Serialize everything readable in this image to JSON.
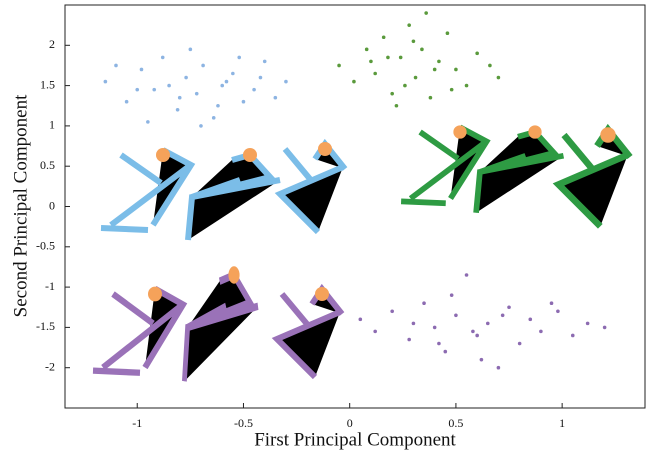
{
  "chart_data": {
    "type": "scatter",
    "x_label": "First Principal Component",
    "y_label": "Second Principal Component",
    "xlim": [
      -1.34,
      1.39
    ],
    "ylim": [
      -2.5,
      2.5
    ],
    "xticks": [
      -1,
      -0.5,
      0,
      0.5,
      1
    ],
    "yticks": [
      -2,
      -1.5,
      -1,
      -0.5,
      0,
      0.5,
      1,
      1.5,
      2
    ],
    "series": [
      {
        "color": "#8db4e2",
        "x": [
          -1.15,
          -1.05,
          -0.98,
          -0.92,
          -0.88,
          -0.81,
          -0.77,
          -0.72,
          -0.69,
          -0.64,
          -0.6,
          -0.55,
          -0.5,
          -0.45,
          -0.4,
          -0.35,
          -0.3,
          -1.1,
          -0.95,
          -0.85,
          -0.75,
          -0.62,
          -0.52,
          -0.42,
          -0.7,
          -0.8,
          -1.0,
          -0.58
        ],
        "values": [
          1.55,
          1.3,
          1.7,
          1.45,
          1.85,
          1.2,
          1.6,
          1.4,
          1.75,
          1.1,
          1.5,
          1.65,
          1.3,
          1.45,
          1.8,
          1.35,
          1.55,
          1.75,
          1.05,
          1.5,
          1.95,
          1.25,
          1.85,
          1.6,
          1.0,
          1.35,
          1.45,
          1.55
        ]
      },
      {
        "color": "#5a9a3c",
        "x": [
          -0.05,
          0.02,
          0.08,
          0.12,
          0.16,
          0.2,
          0.24,
          0.28,
          0.31,
          0.34,
          0.38,
          0.42,
          0.46,
          0.5,
          0.55,
          0.6,
          0.66,
          0.7,
          0.1,
          0.22,
          0.36,
          0.48,
          0.3,
          0.4,
          0.26,
          0.18
        ],
        "values": [
          1.75,
          1.55,
          1.95,
          1.65,
          2.1,
          1.4,
          1.85,
          2.25,
          1.6,
          1.95,
          1.35,
          1.8,
          2.15,
          1.7,
          1.5,
          1.9,
          1.75,
          1.6,
          1.8,
          1.25,
          2.4,
          1.45,
          2.05,
          1.7,
          1.5,
          1.85
        ]
      },
      {
        "color": "#8c6bb1",
        "x": [
          0.05,
          0.12,
          0.2,
          0.28,
          0.35,
          0.4,
          0.45,
          0.5,
          0.55,
          0.6,
          0.65,
          0.7,
          0.75,
          0.8,
          0.85,
          0.9,
          0.98,
          1.05,
          1.12,
          1.2,
          0.3,
          0.48,
          0.62,
          0.72,
          0.58,
          0.42,
          0.95
        ],
        "values": [
          -1.4,
          -1.55,
          -1.3,
          -1.65,
          -1.2,
          -1.5,
          -1.8,
          -1.35,
          -0.85,
          -1.6,
          -1.45,
          -2.0,
          -1.25,
          -1.7,
          -1.4,
          -1.55,
          -1.3,
          -1.6,
          -1.45,
          -1.5,
          -1.45,
          -1.1,
          -1.9,
          -1.35,
          -1.55,
          -1.7,
          -1.2
        ]
      }
    ]
  }
}
